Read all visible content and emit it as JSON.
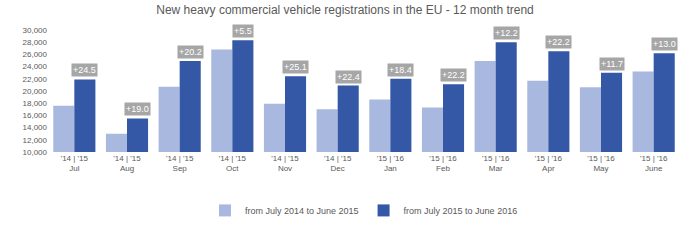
{
  "chart_data": {
    "type": "bar",
    "title": "New heavy commercial vehicle registrations in the EU - 12 month trend",
    "categories": [
      "'14 | '15\nJul",
      "'14 | '15\nAug",
      "'14 | '15\nSep",
      "'14 | '15\nOct",
      "'14 | '15\nNov",
      "'14 | '15\nDec",
      "'15 | '16\nJan",
      "'15 | '16\nFeb",
      "'15 | '16\nMar",
      "'15 | '16\nApr",
      "'15 | '16\nMay",
      "'15 | '16\nJune"
    ],
    "series": [
      {
        "name": "from July 2014 to June 2015",
        "color": "#a9b8df",
        "values": [
          17600,
          13000,
          20700,
          26800,
          17900,
          17000,
          18600,
          17300,
          24900,
          21700,
          20600,
          23200
        ]
      },
      {
        "name": "from July 2015 to June 2016",
        "color": "#3457a6",
        "values": [
          21900,
          15500,
          24900,
          28300,
          22400,
          20900,
          22000,
          21100,
          28000,
          26500,
          23000,
          26200
        ],
        "annotations": [
          "+24.5",
          "+19.0",
          "+20.2",
          "+5.5",
          "+25.1",
          "+22.4",
          "+18.4",
          "+22.2",
          "+12.2",
          "+22.2",
          "+11.7",
          "+13.0"
        ]
      }
    ],
    "ylim": [
      10000,
      30000
    ],
    "yticks": [
      {
        "value": 10000,
        "label": "10,000"
      },
      {
        "value": 12000,
        "label": "12,000"
      },
      {
        "value": 14000,
        "label": "14,000"
      },
      {
        "value": 16000,
        "label": "16,000"
      },
      {
        "value": 18000,
        "label": "18,000"
      },
      {
        "value": 20000,
        "label": "20,000"
      },
      {
        "value": 22000,
        "label": "22,000"
      },
      {
        "value": 24000,
        "label": "24,000"
      },
      {
        "value": 26000,
        "label": "26,000"
      },
      {
        "value": 28000,
        "label": "28,000"
      },
      {
        "value": 30000,
        "label": "30,000"
      }
    ],
    "grid": false,
    "legend": "bottom"
  }
}
